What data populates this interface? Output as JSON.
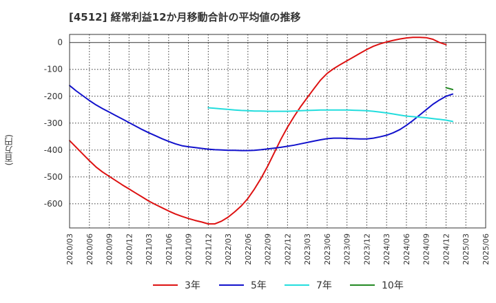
{
  "chart_data": {
    "type": "line",
    "title": "[4512]  経常利益12か月移動合計の平均値の推移",
    "ylabel": "(百万円)",
    "xlabel": "",
    "ylim": [
      -690,
      30
    ],
    "yticks": [
      0,
      -100,
      -200,
      -300,
      -400,
      -500,
      -600
    ],
    "x_ticks": [
      "2020/03",
      "2020/06",
      "2020/09",
      "2020/12",
      "2021/03",
      "2021/06",
      "2021/09",
      "2021/12",
      "2022/03",
      "2022/06",
      "2022/09",
      "2022/12",
      "2023/03",
      "2023/06",
      "2023/09",
      "2023/12",
      "2024/03",
      "2024/06",
      "2024/09",
      "2024/12",
      "2025/03",
      "2025/06"
    ],
    "grid": true,
    "legend_position": "bottom",
    "series": [
      {
        "name": "3年",
        "color": "#dd1111",
        "points": [
          [
            "2020/03",
            -365
          ],
          [
            "2020/04",
            -390
          ],
          [
            "2020/05",
            -415
          ],
          [
            "2020/06",
            -440
          ],
          [
            "2020/07",
            -463
          ],
          [
            "2020/08",
            -482
          ],
          [
            "2020/09",
            -498
          ],
          [
            "2020/10",
            -514
          ],
          [
            "2020/11",
            -530
          ],
          [
            "2020/12",
            -545
          ],
          [
            "2021/01",
            -560
          ],
          [
            "2021/02",
            -575
          ],
          [
            "2021/03",
            -590
          ],
          [
            "2021/04",
            -603
          ],
          [
            "2021/05",
            -615
          ],
          [
            "2021/06",
            -627
          ],
          [
            "2021/07",
            -638
          ],
          [
            "2021/08",
            -647
          ],
          [
            "2021/09",
            -655
          ],
          [
            "2021/10",
            -662
          ],
          [
            "2021/11",
            -668
          ],
          [
            "2021/12",
            -675
          ],
          [
            "2022/01",
            -675
          ],
          [
            "2022/02",
            -665
          ],
          [
            "2022/03",
            -650
          ],
          [
            "2022/04",
            -630
          ],
          [
            "2022/05",
            -608
          ],
          [
            "2022/06",
            -580
          ],
          [
            "2022/07",
            -545
          ],
          [
            "2022/08",
            -505
          ],
          [
            "2022/09",
            -460
          ],
          [
            "2022/10",
            -410
          ],
          [
            "2022/11",
            -360
          ],
          [
            "2022/12",
            -315
          ],
          [
            "2023/01",
            -275
          ],
          [
            "2023/02",
            -238
          ],
          [
            "2023/03",
            -205
          ],
          [
            "2023/04",
            -172
          ],
          [
            "2023/05",
            -140
          ],
          [
            "2023/06",
            -115
          ],
          [
            "2023/07",
            -97
          ],
          [
            "2023/08",
            -82
          ],
          [
            "2023/09",
            -68
          ],
          [
            "2023/10",
            -54
          ],
          [
            "2023/11",
            -40
          ],
          [
            "2023/12",
            -26
          ],
          [
            "2024/01",
            -14
          ],
          [
            "2024/02",
            -5
          ],
          [
            "2024/03",
            2
          ],
          [
            "2024/04",
            8
          ],
          [
            "2024/05",
            13
          ],
          [
            "2024/06",
            17
          ],
          [
            "2024/07",
            19
          ],
          [
            "2024/08",
            19
          ],
          [
            "2024/09",
            18
          ],
          [
            "2024/10",
            12
          ],
          [
            "2024/11",
            0
          ],
          [
            "2024/12",
            -8
          ]
        ]
      },
      {
        "name": "5年",
        "color": "#1111cc",
        "points": [
          [
            "2020/03",
            -160
          ],
          [
            "2020/04",
            -180
          ],
          [
            "2020/05",
            -198
          ],
          [
            "2020/06",
            -216
          ],
          [
            "2020/07",
            -232
          ],
          [
            "2020/08",
            -246
          ],
          [
            "2020/09",
            -259
          ],
          [
            "2020/10",
            -272
          ],
          [
            "2020/11",
            -285
          ],
          [
            "2020/12",
            -298
          ],
          [
            "2021/01",
            -311
          ],
          [
            "2021/02",
            -324
          ],
          [
            "2021/03",
            -336
          ],
          [
            "2021/04",
            -347
          ],
          [
            "2021/05",
            -358
          ],
          [
            "2021/06",
            -368
          ],
          [
            "2021/07",
            -377
          ],
          [
            "2021/08",
            -384
          ],
          [
            "2021/09",
            -388
          ],
          [
            "2021/10",
            -391
          ],
          [
            "2021/11",
            -394
          ],
          [
            "2021/12",
            -397
          ],
          [
            "2022/01",
            -399
          ],
          [
            "2022/02",
            -400
          ],
          [
            "2022/03",
            -401
          ],
          [
            "2022/04",
            -401
          ],
          [
            "2022/05",
            -402
          ],
          [
            "2022/06",
            -402
          ],
          [
            "2022/07",
            -401
          ],
          [
            "2022/08",
            -399
          ],
          [
            "2022/09",
            -396
          ],
          [
            "2022/10",
            -393
          ],
          [
            "2022/11",
            -390
          ],
          [
            "2022/12",
            -386
          ],
          [
            "2023/01",
            -382
          ],
          [
            "2023/02",
            -377
          ],
          [
            "2023/03",
            -372
          ],
          [
            "2023/04",
            -367
          ],
          [
            "2023/05",
            -362
          ],
          [
            "2023/06",
            -358
          ],
          [
            "2023/07",
            -356
          ],
          [
            "2023/08",
            -356
          ],
          [
            "2023/09",
            -357
          ],
          [
            "2023/10",
            -358
          ],
          [
            "2023/11",
            -359
          ],
          [
            "2023/12",
            -359
          ],
          [
            "2024/01",
            -356
          ],
          [
            "2024/02",
            -351
          ],
          [
            "2024/03",
            -345
          ],
          [
            "2024/04",
            -336
          ],
          [
            "2024/05",
            -324
          ],
          [
            "2024/06",
            -308
          ],
          [
            "2024/07",
            -290
          ],
          [
            "2024/08",
            -270
          ],
          [
            "2024/09",
            -250
          ],
          [
            "2024/10",
            -230
          ],
          [
            "2024/11",
            -214
          ],
          [
            "2024/12",
            -200
          ],
          [
            "2025/01",
            -192
          ]
        ]
      },
      {
        "name": "7年",
        "color": "#22dddd",
        "points": [
          [
            "2021/12",
            -243
          ],
          [
            "2022/01",
            -245
          ],
          [
            "2022/02",
            -247
          ],
          [
            "2022/03",
            -249
          ],
          [
            "2022/04",
            -251
          ],
          [
            "2022/05",
            -253
          ],
          [
            "2022/06",
            -254
          ],
          [
            "2022/07",
            -255
          ],
          [
            "2022/08",
            -255
          ],
          [
            "2022/09",
            -256
          ],
          [
            "2022/10",
            -256
          ],
          [
            "2022/11",
            -256
          ],
          [
            "2022/12",
            -256
          ],
          [
            "2023/01",
            -255
          ],
          [
            "2023/02",
            -254
          ],
          [
            "2023/03",
            -253
          ],
          [
            "2023/04",
            -252
          ],
          [
            "2023/05",
            -251
          ],
          [
            "2023/06",
            -251
          ],
          [
            "2023/07",
            -251
          ],
          [
            "2023/08",
            -251
          ],
          [
            "2023/09",
            -251
          ],
          [
            "2023/10",
            -252
          ],
          [
            "2023/11",
            -253
          ],
          [
            "2023/12",
            -254
          ],
          [
            "2024/01",
            -256
          ],
          [
            "2024/02",
            -259
          ],
          [
            "2024/03",
            -262
          ],
          [
            "2024/04",
            -266
          ],
          [
            "2024/05",
            -270
          ],
          [
            "2024/06",
            -274
          ],
          [
            "2024/07",
            -276
          ],
          [
            "2024/08",
            -278
          ],
          [
            "2024/09",
            -280
          ],
          [
            "2024/10",
            -283
          ],
          [
            "2024/11",
            -286
          ],
          [
            "2024/12",
            -289
          ],
          [
            "2025/01",
            -294
          ]
        ]
      },
      {
        "name": "10年",
        "color": "#228822",
        "points": [
          [
            "2024/12",
            -168
          ],
          [
            "2025/01",
            -175
          ]
        ]
      }
    ]
  }
}
